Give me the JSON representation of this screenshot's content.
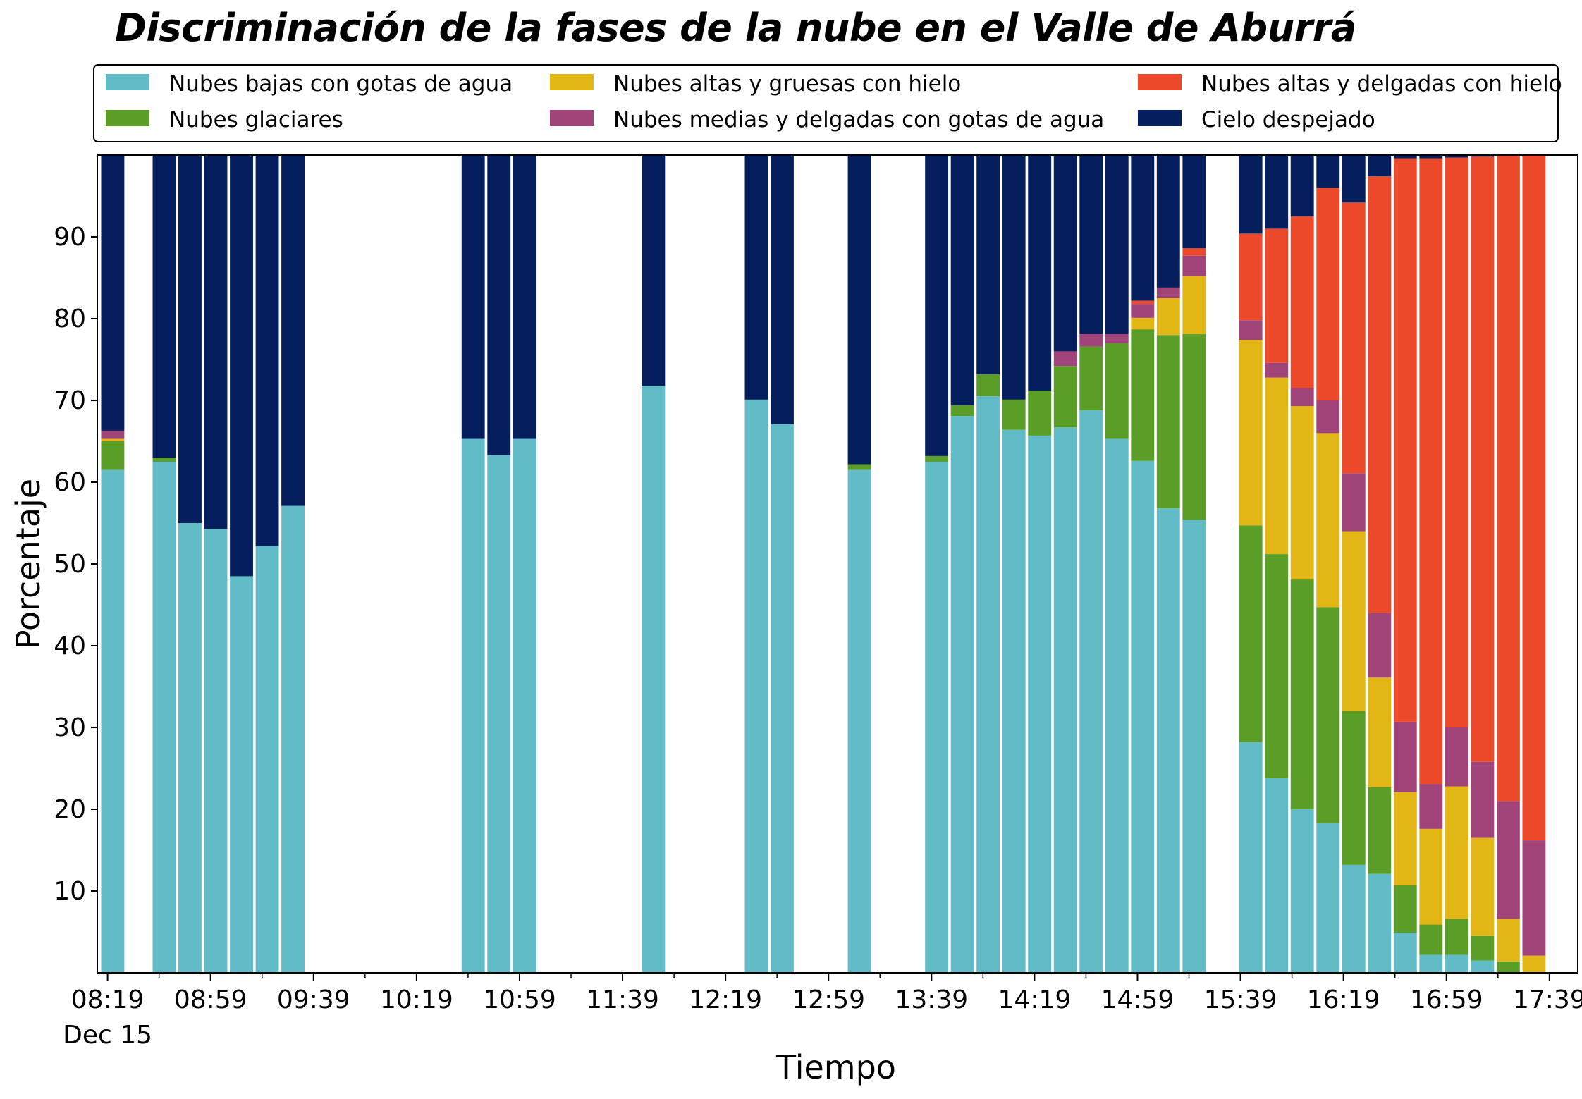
{
  "title": "Discriminación de la fases de la nube en el Valle de Aburrá",
  "chart_data": {
    "type": "bar",
    "stacked": true,
    "title": "Discriminación de la fases de la nube en el Valle de Aburrá",
    "xlabel": "Tiempo",
    "ylabel": "Porcentaje",
    "ylim": [
      0,
      100
    ],
    "yticks": [
      10,
      20,
      30,
      40,
      50,
      60,
      70,
      80,
      90
    ],
    "xlim": [
      495,
      1070
    ],
    "bar_width_minutes": 9,
    "xticks": [
      {
        "t": 499,
        "label": "08:19",
        "sublabel": "Dec 15"
      },
      {
        "t": 539,
        "label": "08:59"
      },
      {
        "t": 579,
        "label": "09:39"
      },
      {
        "t": 619,
        "label": "10:19"
      },
      {
        "t": 659,
        "label": "10:59"
      },
      {
        "t": 699,
        "label": "11:39"
      },
      {
        "t": 739,
        "label": "12:19"
      },
      {
        "t": 779,
        "label": "12:59"
      },
      {
        "t": 819,
        "label": "13:39"
      },
      {
        "t": 859,
        "label": "14:19"
      },
      {
        "t": 899,
        "label": "14:59"
      },
      {
        "t": 939,
        "label": "15:39"
      },
      {
        "t": 979,
        "label": "16:19"
      },
      {
        "t": 1019,
        "label": "16:59"
      },
      {
        "t": 1059,
        "label": "17:39"
      }
    ],
    "minor_xticks": [
      519,
      559,
      599,
      639,
      679,
      719,
      759,
      799,
      839,
      879,
      919,
      959,
      999,
      1039
    ],
    "legend_position": "top",
    "series": [
      {
        "name": "Nubes bajas con gotas de agua",
        "color": "#62bcc8"
      },
      {
        "name": "Nubes glaciares",
        "color": "#5a9e28"
      },
      {
        "name": "Nubes altas y gruesas con hielo",
        "color": "#e2b614"
      },
      {
        "name": "Nubes medias y delgadas con gotas de agua",
        "color": "#a0447a"
      },
      {
        "name": "Nubes altas y delgadas con hielo",
        "color": "#ec4a2a"
      },
      {
        "name": "Cielo despejado",
        "color": "#041e5e"
      }
    ],
    "bars": [
      {
        "t": 501,
        "values": [
          61.5,
          3.5,
          0.3,
          1.0,
          0,
          33.7
        ]
      },
      {
        "t": 521,
        "values": [
          62.5,
          0.5,
          0,
          0,
          0,
          37.0
        ]
      },
      {
        "t": 531,
        "values": [
          55.0,
          0,
          0,
          0,
          0,
          45.0
        ]
      },
      {
        "t": 541,
        "values": [
          54.3,
          0,
          0,
          0,
          0,
          45.7
        ]
      },
      {
        "t": 551,
        "values": [
          48.5,
          0,
          0,
          0,
          0,
          51.5
        ]
      },
      {
        "t": 561,
        "values": [
          52.2,
          0,
          0,
          0,
          0,
          47.8
        ]
      },
      {
        "t": 571,
        "values": [
          57.1,
          0,
          0,
          0,
          0,
          42.9
        ]
      },
      {
        "t": 641,
        "values": [
          65.3,
          0,
          0,
          0,
          0,
          34.7
        ]
      },
      {
        "t": 651,
        "values": [
          63.3,
          0,
          0,
          0,
          0,
          36.7
        ]
      },
      {
        "t": 661,
        "values": [
          65.3,
          0,
          0,
          0,
          0,
          34.7
        ]
      },
      {
        "t": 711,
        "values": [
          71.8,
          0,
          0,
          0,
          0,
          28.2
        ]
      },
      {
        "t": 751,
        "values": [
          70.1,
          0,
          0,
          0,
          0,
          29.9
        ]
      },
      {
        "t": 761,
        "values": [
          67.1,
          0,
          0,
          0,
          0,
          32.9
        ]
      },
      {
        "t": 791,
        "values": [
          61.5,
          0.7,
          0,
          0,
          0,
          37.8
        ]
      },
      {
        "t": 821,
        "values": [
          62.5,
          0.7,
          0,
          0,
          0,
          36.8
        ]
      },
      {
        "t": 831,
        "values": [
          68.1,
          1.3,
          0,
          0,
          0,
          30.6
        ]
      },
      {
        "t": 841,
        "values": [
          70.5,
          2.7,
          0,
          0,
          0,
          26.8
        ]
      },
      {
        "t": 851,
        "values": [
          66.4,
          3.7,
          0,
          0,
          0,
          29.9
        ]
      },
      {
        "t": 861,
        "values": [
          65.7,
          5.5,
          0,
          0,
          0,
          28.8
        ]
      },
      {
        "t": 871,
        "values": [
          66.7,
          7.5,
          0,
          1.8,
          0,
          24.0
        ]
      },
      {
        "t": 881,
        "values": [
          68.8,
          7.8,
          0,
          1.5,
          0,
          21.9
        ]
      },
      {
        "t": 891,
        "values": [
          65.3,
          11.7,
          0,
          1.1,
          0,
          21.9
        ]
      },
      {
        "t": 901,
        "values": [
          62.6,
          16.1,
          1.4,
          1.7,
          0.4,
          17.8
        ]
      },
      {
        "t": 911,
        "values": [
          56.8,
          21.2,
          4.5,
          1.3,
          0,
          16.2
        ]
      },
      {
        "t": 921,
        "values": [
          55.4,
          22.7,
          7.1,
          2.5,
          0.9,
          11.4
        ]
      },
      {
        "t": 943,
        "values": [
          28.2,
          26.5,
          22.7,
          2.4,
          10.6,
          9.6
        ]
      },
      {
        "t": 953,
        "values": [
          23.8,
          27.4,
          21.6,
          1.8,
          16.4,
          9.0
        ]
      },
      {
        "t": 963,
        "values": [
          20.0,
          28.1,
          21.2,
          2.2,
          21.0,
          7.5
        ]
      },
      {
        "t": 973,
        "values": [
          18.3,
          26.4,
          21.3,
          4.0,
          26.0,
          4.0
        ]
      },
      {
        "t": 983,
        "values": [
          13.2,
          18.8,
          22.0,
          7.1,
          33.1,
          5.8
        ]
      },
      {
        "t": 993,
        "values": [
          12.1,
          10.6,
          13.4,
          7.9,
          53.4,
          2.6
        ]
      },
      {
        "t": 1003,
        "values": [
          4.9,
          5.8,
          11.4,
          8.6,
          68.9,
          0.4
        ]
      },
      {
        "t": 1013,
        "values": [
          2.2,
          3.7,
          11.7,
          5.5,
          76.5,
          0.4
        ]
      },
      {
        "t": 1023,
        "values": [
          2.2,
          4.4,
          16.2,
          7.2,
          69.7,
          0.3
        ]
      },
      {
        "t": 1033,
        "values": [
          1.5,
          3.0,
          12.0,
          9.3,
          74.0,
          0.2
        ]
      },
      {
        "t": 1043,
        "values": [
          0,
          1.4,
          5.2,
          14.4,
          78.9,
          0.1
        ]
      },
      {
        "t": 1053,
        "values": [
          0,
          0,
          2.1,
          14.1,
          83.8,
          0
        ]
      }
    ]
  }
}
